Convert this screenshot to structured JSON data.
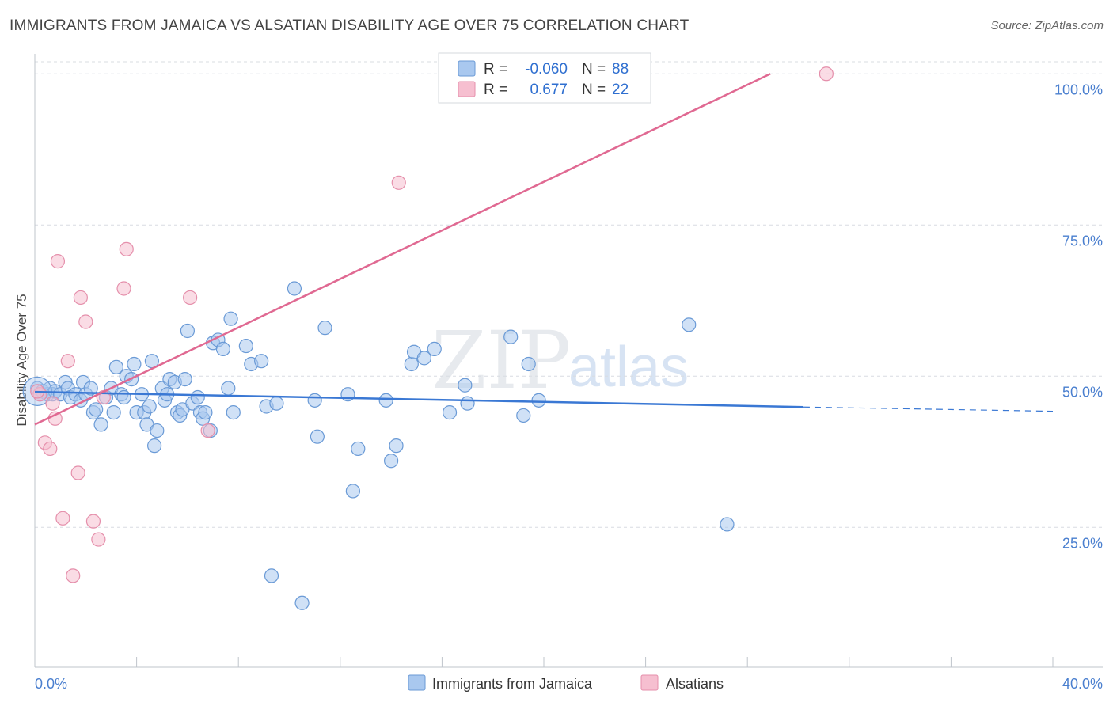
{
  "header": {
    "title": "IMMIGRANTS FROM JAMAICA VS ALSATIAN DISABILITY AGE OVER 75 CORRELATION CHART",
    "source": "Source: ZipAtlas.com"
  },
  "watermark": {
    "zip": "ZIP",
    "atlas": "atlas"
  },
  "colors": {
    "blue_fill": "#a9c8ef",
    "blue_stroke": "#6a9ad6",
    "blue_line": "#3a78d4",
    "pink_fill": "#f6bfd0",
    "pink_stroke": "#e58fab",
    "pink_line": "#e06992",
    "grid": "#d8dce2"
  },
  "legend": {
    "rows": [
      {
        "r_label": "R =",
        "r_value": "-0.060",
        "n_label": "N =",
        "n_value": "88"
      },
      {
        "r_label": "R =",
        "r_value": "0.677",
        "n_label": "N =",
        "n_value": "22"
      }
    ]
  },
  "chart_data": {
    "type": "scatter",
    "title": "IMMIGRANTS FROM JAMAICA VS ALSATIAN DISABILITY AGE OVER 75 CORRELATION CHART",
    "xlabel": "",
    "ylabel": "Disability Age Over 75",
    "xlim": [
      0,
      40
    ],
    "ylim": [
      2,
      102
    ],
    "x_tick_labels": [
      "0.0%",
      "40.0%"
    ],
    "y_ticks": [
      25,
      50,
      75,
      100
    ],
    "y_tick_labels": [
      "25.0%",
      "50.0%",
      "75.0%",
      "100.0%"
    ],
    "series": [
      {
        "name": "Immigrants from Jamaica",
        "color": "#a9c8ef",
        "trend": {
          "x": [
            0,
            30.2
          ],
          "y": [
            47.4,
            44.9
          ],
          "dashed_extension_x": [
            30.2,
            40
          ],
          "dashed_extension_y": [
            44.9,
            44.2
          ]
        },
        "points": [
          [
            0.1,
            48
          ],
          [
            0.2,
            47
          ],
          [
            0.3,
            47.5
          ],
          [
            0.5,
            47
          ],
          [
            0.6,
            48
          ],
          [
            0.7,
            47
          ],
          [
            0.8,
            47.5
          ],
          [
            1.0,
            47
          ],
          [
            1.2,
            49
          ],
          [
            1.3,
            48
          ],
          [
            1.4,
            46.5
          ],
          [
            1.6,
            47
          ],
          [
            1.8,
            46
          ],
          [
            1.9,
            49
          ],
          [
            2.0,
            47
          ],
          [
            2.2,
            48
          ],
          [
            2.3,
            44
          ],
          [
            2.4,
            44.5
          ],
          [
            2.6,
            42
          ],
          [
            2.8,
            46.5
          ],
          [
            3.0,
            48
          ],
          [
            3.1,
            44
          ],
          [
            3.2,
            51.5
          ],
          [
            3.4,
            47
          ],
          [
            3.5,
            46.5
          ],
          [
            3.6,
            50
          ],
          [
            3.8,
            49.5
          ],
          [
            3.9,
            52
          ],
          [
            4.0,
            44
          ],
          [
            4.2,
            47
          ],
          [
            4.3,
            44
          ],
          [
            4.4,
            42
          ],
          [
            4.5,
            45
          ],
          [
            4.6,
            52.5
          ],
          [
            4.7,
            38.5
          ],
          [
            4.8,
            41
          ],
          [
            5.0,
            48
          ],
          [
            5.1,
            46
          ],
          [
            5.2,
            47
          ],
          [
            5.3,
            49.5
          ],
          [
            5.5,
            49
          ],
          [
            5.6,
            44
          ],
          [
            5.7,
            43.5
          ],
          [
            5.8,
            44.5
          ],
          [
            5.9,
            49.5
          ],
          [
            6.0,
            57.5
          ],
          [
            6.2,
            45.5
          ],
          [
            6.4,
            46.5
          ],
          [
            6.5,
            44
          ],
          [
            6.6,
            43
          ],
          [
            6.7,
            44
          ],
          [
            6.9,
            41
          ],
          [
            7.0,
            55.5
          ],
          [
            7.2,
            56
          ],
          [
            7.4,
            54.5
          ],
          [
            7.6,
            48
          ],
          [
            7.7,
            59.5
          ],
          [
            7.8,
            44
          ],
          [
            8.3,
            55
          ],
          [
            8.5,
            52
          ],
          [
            8.9,
            52.5
          ],
          [
            9.1,
            45
          ],
          [
            9.3,
            17
          ],
          [
            9.5,
            45.5
          ],
          [
            10.2,
            64.5
          ],
          [
            10.5,
            12.5
          ],
          [
            11.0,
            46
          ],
          [
            11.1,
            40
          ],
          [
            11.4,
            58
          ],
          [
            12.3,
            47
          ],
          [
            12.5,
            31
          ],
          [
            12.7,
            38
          ],
          [
            13.8,
            46
          ],
          [
            14.0,
            36
          ],
          [
            14.2,
            38.5
          ],
          [
            14.8,
            52
          ],
          [
            14.9,
            54
          ],
          [
            15.3,
            53
          ],
          [
            15.7,
            54.5
          ],
          [
            16.3,
            44
          ],
          [
            16.9,
            48.5
          ],
          [
            17.0,
            45.5
          ],
          [
            18.7,
            56.5
          ],
          [
            19.2,
            43.5
          ],
          [
            19.4,
            52
          ],
          [
            19.8,
            46
          ],
          [
            25.7,
            58.5
          ],
          [
            27.2,
            25.5
          ]
        ]
      },
      {
        "name": "Alsatians",
        "color": "#f6bfd0",
        "trend": {
          "x": [
            0,
            28.9
          ],
          "y": [
            42,
            100
          ]
        },
        "points": [
          [
            0.2,
            47
          ],
          [
            0.4,
            39
          ],
          [
            0.6,
            38
          ],
          [
            0.7,
            45.5
          ],
          [
            0.8,
            43
          ],
          [
            0.9,
            69
          ],
          [
            1.1,
            26.5
          ],
          [
            1.3,
            52.5
          ],
          [
            1.5,
            17
          ],
          [
            1.7,
            34
          ],
          [
            1.8,
            63
          ],
          [
            2.0,
            59
          ],
          [
            2.3,
            26
          ],
          [
            2.5,
            23
          ],
          [
            2.7,
            46.5
          ],
          [
            3.5,
            64.5
          ],
          [
            3.6,
            71
          ],
          [
            6.1,
            63
          ],
          [
            6.8,
            41
          ],
          [
            14.3,
            82
          ],
          [
            31.1,
            100
          ],
          [
            0.1,
            47.5
          ]
        ]
      }
    ]
  },
  "bottom_legend": {
    "items": [
      {
        "label": "Immigrants from Jamaica"
      },
      {
        "label": "Alsatians"
      }
    ]
  }
}
